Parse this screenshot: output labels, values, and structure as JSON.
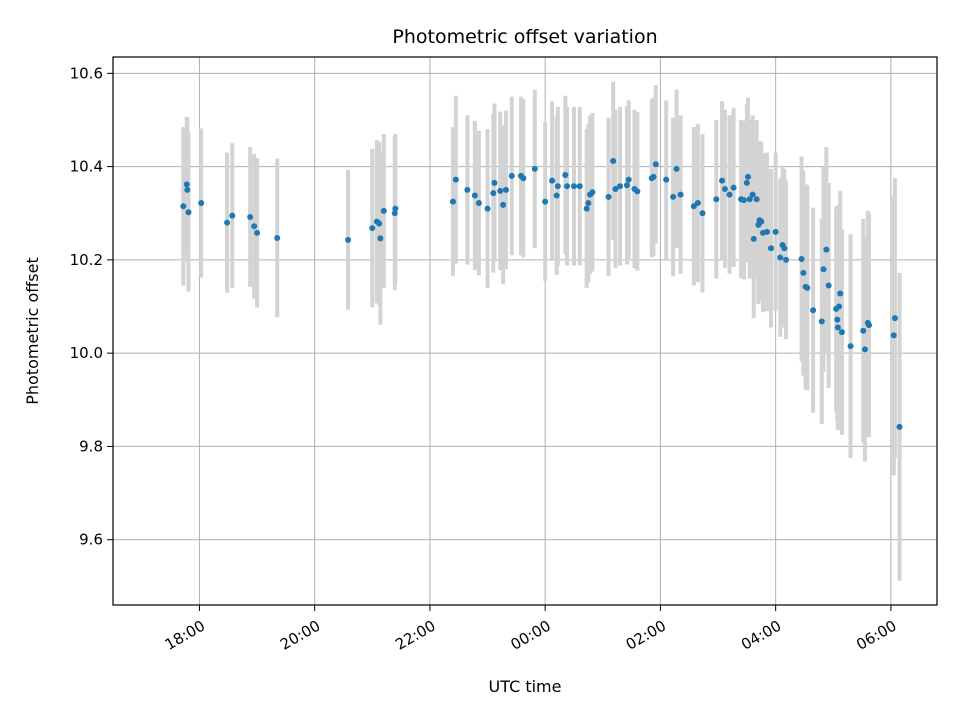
{
  "chart_data": {
    "type": "scatter",
    "title": "Photometric offset variation",
    "xlabel": "UTC time",
    "ylabel": "Photometric offset",
    "x_axis": "time (hours relative to 00:00 UTC)",
    "xlim": [
      -7.5,
      6.8
    ],
    "ylim": [
      9.46,
      10.635
    ],
    "x_ticks": [
      -6,
      -4,
      -2,
      0,
      2,
      4,
      6
    ],
    "x_tick_labels": [
      "18:00",
      "20:00",
      "22:00",
      "00:00",
      "02:00",
      "04:00",
      "06:00"
    ],
    "y_ticks": [
      9.6,
      9.8,
      10.0,
      10.2,
      10.4,
      10.6
    ],
    "y_tick_labels": [
      "9.6",
      "9.8",
      "10.0",
      "10.2",
      "10.4",
      "10.6"
    ],
    "grid": true,
    "colors": {
      "point": "#1f77b4",
      "errorbar": "#d3d3d3",
      "grid": "#b0b0b0"
    },
    "points": [
      [
        -6.28,
        10.315,
        0.17
      ],
      [
        -6.22,
        10.362,
        0.145
      ],
      [
        -6.21,
        10.35,
        0.155
      ],
      [
        -6.19,
        10.302,
        0.17
      ],
      [
        -5.97,
        10.322,
        0.16
      ],
      [
        -5.52,
        10.28,
        0.15
      ],
      [
        -5.43,
        10.295,
        0.155
      ],
      [
        -5.12,
        10.292,
        0.15
      ],
      [
        -5.05,
        10.272,
        0.155
      ],
      [
        -5.0,
        10.258,
        0.16
      ],
      [
        -4.65,
        10.247,
        0.17
      ],
      [
        -3.42,
        10.243,
        0.15
      ],
      [
        -3.0,
        10.268,
        0.17
      ],
      [
        -2.92,
        10.282,
        0.175
      ],
      [
        -2.88,
        10.278,
        0.175
      ],
      [
        -2.86,
        10.246,
        0.185
      ],
      [
        -2.8,
        10.305,
        0.165
      ],
      [
        -2.6,
        10.31,
        0.16
      ],
      [
        -2.61,
        10.3,
        0.165
      ],
      [
        -1.6,
        10.325,
        0.16
      ],
      [
        -1.55,
        10.372,
        0.18
      ],
      [
        -1.35,
        10.35,
        0.16
      ],
      [
        -1.22,
        10.338,
        0.16
      ],
      [
        -1.15,
        10.322,
        0.155
      ],
      [
        -1.0,
        10.31,
        0.17
      ],
      [
        -0.9,
        10.343,
        0.17
      ],
      [
        -0.88,
        10.365,
        0.17
      ],
      [
        -0.78,
        10.348,
        0.17
      ],
      [
        -0.73,
        10.318,
        0.17
      ],
      [
        -0.68,
        10.35,
        0.17
      ],
      [
        -0.58,
        10.38,
        0.17
      ],
      [
        -0.42,
        10.38,
        0.17
      ],
      [
        -0.38,
        10.375,
        0.17
      ],
      [
        -0.18,
        10.395,
        0.17
      ],
      [
        0.0,
        10.325,
        0.17
      ],
      [
        0.12,
        10.37,
        0.17
      ],
      [
        0.2,
        10.338,
        0.17
      ],
      [
        0.22,
        10.358,
        0.17
      ],
      [
        0.35,
        10.382,
        0.17
      ],
      [
        0.38,
        10.358,
        0.17
      ],
      [
        0.5,
        10.358,
        0.17
      ],
      [
        0.6,
        10.358,
        0.17
      ],
      [
        0.72,
        10.31,
        0.17
      ],
      [
        0.75,
        10.322,
        0.17
      ],
      [
        0.78,
        10.34,
        0.17
      ],
      [
        0.82,
        10.345,
        0.17
      ],
      [
        1.1,
        10.335,
        0.17
      ],
      [
        1.18,
        10.412,
        0.17
      ],
      [
        1.22,
        10.352,
        0.17
      ],
      [
        1.3,
        10.358,
        0.17
      ],
      [
        1.42,
        10.36,
        0.17
      ],
      [
        1.45,
        10.372,
        0.17
      ],
      [
        1.55,
        10.352,
        0.17
      ],
      [
        1.6,
        10.347,
        0.17
      ],
      [
        1.85,
        10.375,
        0.17
      ],
      [
        1.88,
        10.378,
        0.17
      ],
      [
        1.92,
        10.405,
        0.17
      ],
      [
        2.1,
        10.372,
        0.17
      ],
      [
        2.22,
        10.335,
        0.17
      ],
      [
        2.28,
        10.395,
        0.17
      ],
      [
        2.35,
        10.34,
        0.17
      ],
      [
        2.58,
        10.315,
        0.17
      ],
      [
        2.65,
        10.322,
        0.17
      ],
      [
        2.73,
        10.3,
        0.17
      ],
      [
        2.97,
        10.33,
        0.17
      ],
      [
        3.07,
        10.37,
        0.17
      ],
      [
        3.12,
        10.352,
        0.17
      ],
      [
        3.2,
        10.34,
        0.17
      ],
      [
        3.27,
        10.355,
        0.17
      ],
      [
        3.4,
        10.33,
        0.17
      ],
      [
        3.45,
        10.328,
        0.17
      ],
      [
        3.5,
        10.365,
        0.17
      ],
      [
        3.52,
        10.378,
        0.17
      ],
      [
        3.55,
        10.33,
        0.17
      ],
      [
        3.6,
        10.34,
        0.17
      ],
      [
        3.62,
        10.245,
        0.17
      ],
      [
        3.67,
        10.33,
        0.17
      ],
      [
        3.7,
        10.275,
        0.17
      ],
      [
        3.72,
        10.285,
        0.17
      ],
      [
        3.75,
        10.282,
        0.17
      ],
      [
        3.78,
        10.258,
        0.17
      ],
      [
        3.85,
        10.26,
        0.17
      ],
      [
        3.92,
        10.225,
        0.17
      ],
      [
        4.0,
        10.26,
        0.17
      ],
      [
        4.08,
        10.205,
        0.17
      ],
      [
        4.12,
        10.232,
        0.17
      ],
      [
        4.15,
        10.225,
        0.17
      ],
      [
        4.18,
        10.2,
        0.17
      ],
      [
        4.45,
        10.202,
        0.22
      ],
      [
        4.48,
        10.172,
        0.22
      ],
      [
        4.52,
        10.142,
        0.22
      ],
      [
        4.55,
        10.14,
        0.22
      ],
      [
        4.65,
        10.092,
        0.22
      ],
      [
        4.8,
        10.068,
        0.22
      ],
      [
        4.83,
        10.18,
        0.22
      ],
      [
        4.88,
        10.222,
        0.22
      ],
      [
        4.92,
        10.145,
        0.22
      ],
      [
        5.05,
        10.095,
        0.22
      ],
      [
        5.07,
        10.072,
        0.22
      ],
      [
        5.08,
        10.055,
        0.22
      ],
      [
        5.1,
        10.1,
        0.22
      ],
      [
        5.12,
        10.128,
        0.22
      ],
      [
        5.15,
        10.045,
        0.22
      ],
      [
        5.3,
        10.015,
        0.24
      ],
      [
        5.52,
        10.048,
        0.24
      ],
      [
        5.55,
        10.008,
        0.24
      ],
      [
        5.6,
        10.065,
        0.24
      ],
      [
        5.62,
        10.06,
        0.24
      ],
      [
        6.05,
        10.038,
        0.3
      ],
      [
        6.07,
        10.075,
        0.3
      ],
      [
        6.15,
        9.842,
        0.33
      ]
    ]
  }
}
